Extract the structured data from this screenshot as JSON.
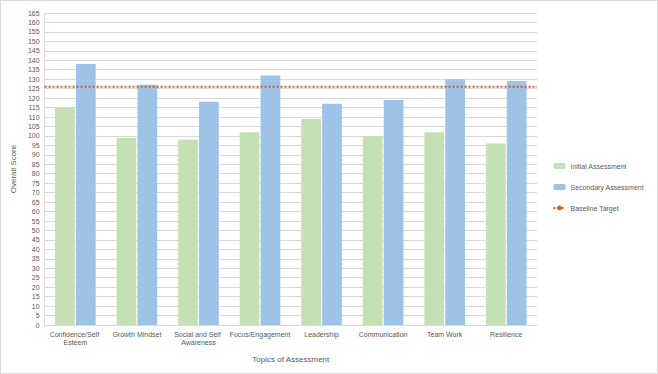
{
  "chart_data": {
    "type": "bar",
    "x_label": "Topics of Assessment",
    "y_label": "Overall Score",
    "categories": [
      "Confidence/Self Esteem",
      "Growth Mindset",
      "Social and Self Awareness",
      "Focus/Engagement",
      "Leadership",
      "Communication",
      "Team Work",
      "Resilience"
    ],
    "series": [
      {
        "name": "Initial Assessment",
        "type": "bar",
        "color": "#c5e0b4",
        "values": [
          115,
          99,
          98,
          102,
          109,
          100,
          102,
          96
        ]
      },
      {
        "name": "Secondary Assessment",
        "type": "bar",
        "color": "#9dc3e6",
        "values": [
          138,
          127,
          118,
          132,
          117,
          119,
          130,
          129
        ]
      },
      {
        "name": "Baseline Target",
        "type": "line",
        "color": "#d55a1e",
        "line_style": "dotted",
        "values": [
          126,
          126,
          126,
          126,
          126,
          126,
          126,
          126
        ]
      }
    ],
    "ylim": [
      0,
      165
    ],
    "yticks": [
      0,
      5,
      10,
      15,
      20,
      25,
      30,
      35,
      40,
      45,
      50,
      55,
      60,
      65,
      70,
      75,
      80,
      85,
      90,
      95,
      100,
      105,
      110,
      115,
      120,
      125,
      130,
      135,
      140,
      145,
      150,
      155,
      160,
      165
    ],
    "grid": true,
    "legend": "right"
  }
}
